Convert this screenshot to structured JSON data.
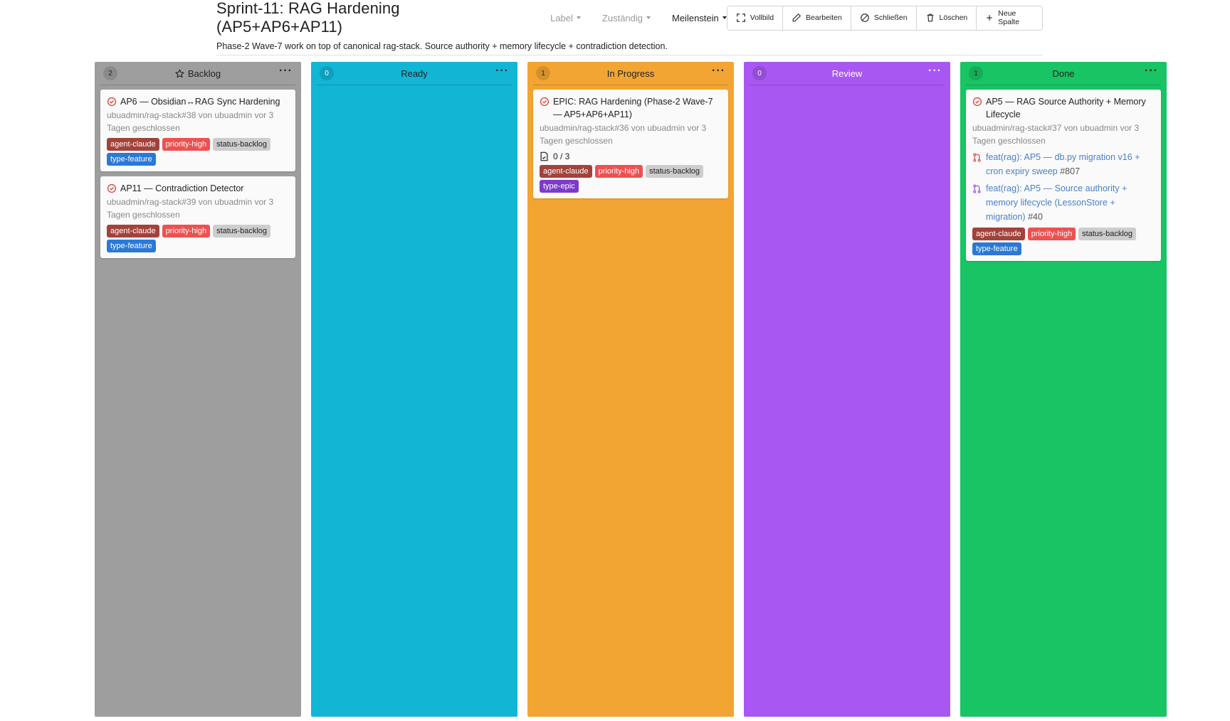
{
  "header": {
    "title": "Sprint-11: RAG Hardening (AP5+AP6+AP11)",
    "description": "Phase-2 Wave-7 work on top of canonical rag-stack. Source authority + memory lifecycle + contradiction detection.",
    "filters": {
      "label": "Label",
      "assignee": "Zuständig",
      "milestone": "Meilenstein"
    },
    "toolbar": {
      "fullscreen": "Vollbild",
      "edit": "Bearbeiten",
      "close": "Schließen",
      "delete": "Löschen",
      "new_column": "Neue Spalte"
    }
  },
  "colors": {
    "backlog": "#9e9e9e",
    "ready": "#12b5d4",
    "in_progress": "#f2a532",
    "review": "#a857f2",
    "done": "#18c463",
    "agent_claude": "#a3423b",
    "priority_high": "#ee5050",
    "status_backlog": "#cdcdcd",
    "type_feature": "#2a79d6",
    "type_epic": "#7c3bcb"
  },
  "icons": {
    "issue_closed": "check-circle-icon",
    "pull_request": "pull-request-icon",
    "tasklist": "tasklist-icon",
    "default_column": "star-icon"
  },
  "columns": [
    {
      "title": "Backlog",
      "count": "2",
      "default": true,
      "cards": [
        {
          "title": "AP6 — Obsidian↔RAG Sync Hardening",
          "meta": "ubuadmin/rag-stack#38 von ubuadmin vor 3 Tagen geschlossen",
          "labels": [
            "agent-claude",
            "priority-high",
            "status-backlog",
            "type-feature"
          ]
        },
        {
          "title": "AP11 — Contradiction Detector",
          "meta": "ubuadmin/rag-stack#39 von ubuadmin vor 3 Tagen geschlossen",
          "labels": [
            "agent-claude",
            "priority-high",
            "status-backlog",
            "type-feature"
          ]
        }
      ]
    },
    {
      "title": "Ready",
      "count": "0",
      "cards": []
    },
    {
      "title": "In Progress",
      "count": "1",
      "cards": [
        {
          "title": "EPIC: RAG Hardening (Phase-2 Wave-7 — AP5+AP6+AP11)",
          "meta": "ubuadmin/rag-stack#36 von ubuadmin vor 3 Tagen geschlossen",
          "progress": "0 / 3",
          "labels": [
            "agent-claude",
            "priority-high",
            "status-backlog",
            "type-epic"
          ]
        }
      ]
    },
    {
      "title": "Review",
      "count": "0",
      "cards": []
    },
    {
      "title": "Done",
      "count": "1",
      "cards": [
        {
          "title": "AP5 — RAG Source Authority + Memory Lifecycle",
          "meta": "ubuadmin/rag-stack#37 von ubuadmin vor 3 Tagen geschlossen",
          "pulls": [
            {
              "title": "feat(rag): AP5 — db.py migration v16 + cron expiry sweep",
              "number": "#807",
              "color": "#e5534b"
            },
            {
              "title": "feat(rag): AP5 — Source authority + memory lifecycle (LessonStore + migration)",
              "number": "#40",
              "color": "#a857f2"
            }
          ],
          "labels": [
            "agent-claude",
            "priority-high",
            "status-backlog",
            "type-feature"
          ]
        }
      ]
    }
  ]
}
